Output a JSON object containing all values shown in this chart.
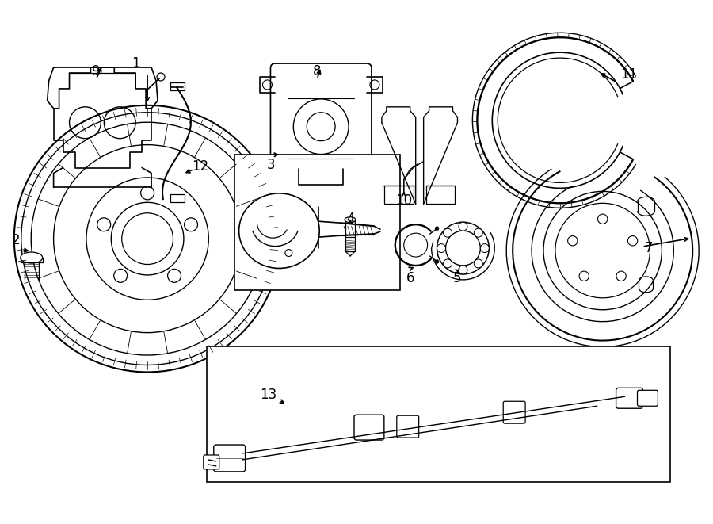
{
  "bg_color": "#ffffff",
  "line_color": "#000000",
  "line_width": 1.2,
  "figsize": [
    9.0,
    6.61
  ],
  "dpi": 100
}
